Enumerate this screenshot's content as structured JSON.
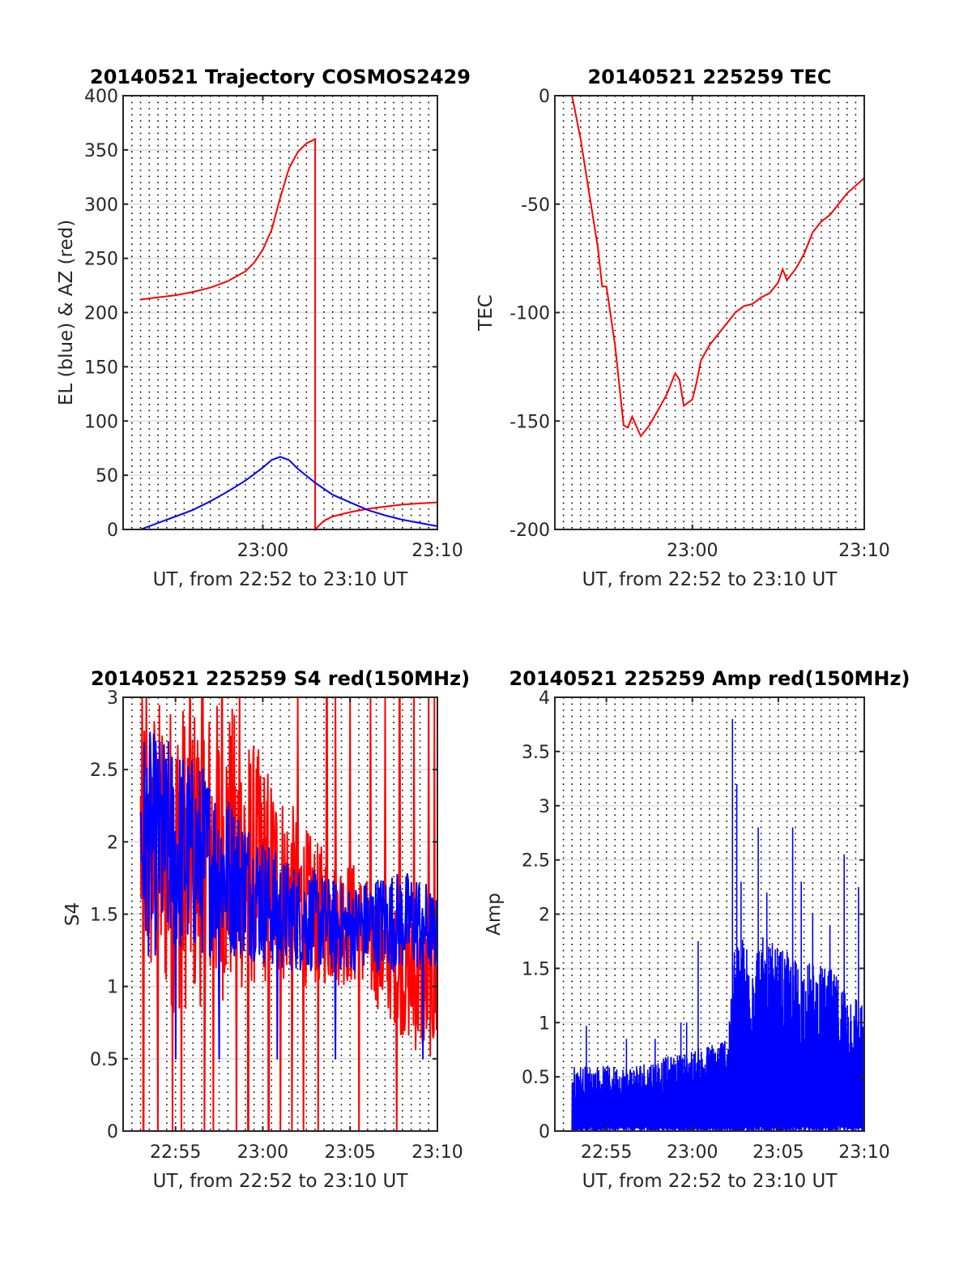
{
  "colors": {
    "red": "#ff0000",
    "blue": "#0000ff",
    "grid": "#e3e3e3",
    "minor_grid": "#000000"
  },
  "chart_data": [
    {
      "id": "p1",
      "type": "line",
      "title": "20140521 Trajectory COSMOS2429",
      "xlabel": "UT, from 22:52 to 23:10 UT",
      "ylabel": "EL (blue) & AZ (red)",
      "xlim": [
        "22:52",
        "23:10"
      ],
      "xticks": [
        "23:00",
        "23:10"
      ],
      "ylim": [
        0,
        400
      ],
      "yticks": [
        "0",
        "50",
        "100",
        "150",
        "200",
        "250",
        "300",
        "350",
        "400"
      ],
      "grid": "minor dotted vertical every 30 s, horizontal major gray",
      "series": [
        {
          "color": "red",
          "role": "AZ",
          "points": [
            [
              "22:53:00",
              212
            ],
            [
              "22:54:00",
              214
            ],
            [
              "22:55:00",
              216
            ],
            [
              "22:56:00",
              219
            ],
            [
              "22:57:00",
              223
            ],
            [
              "22:58:00",
              229
            ],
            [
              "22:59:00",
              238
            ],
            [
              "22:59:30",
              246
            ],
            [
              "23:00:00",
              258
            ],
            [
              "23:00:30",
              276
            ],
            [
              "23:01:00",
              306
            ],
            [
              "23:01:30",
              333
            ],
            [
              "23:02:00",
              348
            ],
            [
              "23:02:30",
              356
            ],
            [
              "23:03:00",
              360
            ],
            [
              "23:03:00",
              0
            ],
            [
              "23:03:30",
              8
            ],
            [
              "23:04:00",
              12
            ],
            [
              "23:05:00",
              16
            ],
            [
              "23:06:00",
              19
            ],
            [
              "23:07:00",
              21
            ],
            [
              "23:08:00",
              23
            ],
            [
              "23:09:00",
              24
            ],
            [
              "23:10:00",
              25
            ]
          ]
        },
        {
          "color": "blue",
          "role": "EL",
          "points": [
            [
              "22:53:00",
              0
            ],
            [
              "22:54:00",
              6
            ],
            [
              "22:55:00",
              12
            ],
            [
              "22:56:00",
              18
            ],
            [
              "22:57:00",
              26
            ],
            [
              "22:58:00",
              35
            ],
            [
              "22:59:00",
              45
            ],
            [
              "23:00:00",
              57
            ],
            [
              "23:00:30",
              64
            ],
            [
              "23:01:00",
              67
            ],
            [
              "23:01:30",
              64
            ],
            [
              "23:02:00",
              56
            ],
            [
              "23:03:00",
              43
            ],
            [
              "23:04:00",
              32
            ],
            [
              "23:05:00",
              25
            ],
            [
              "23:06:00",
              18
            ],
            [
              "23:07:00",
              13
            ],
            [
              "23:08:00",
              9
            ],
            [
              "23:09:00",
              6
            ],
            [
              "23:10:00",
              3
            ]
          ]
        }
      ]
    },
    {
      "id": "p2",
      "type": "line",
      "title": "20140521 225259 TEC",
      "xlabel": "UT, from 22:52 to 23:10 UT",
      "ylabel": "TEC",
      "xlim": [
        "22:52",
        "23:10"
      ],
      "xticks": [
        "23:00",
        "23:10"
      ],
      "ylim": [
        -200,
        0
      ],
      "yticks": [
        "-200",
        "-150",
        "-100",
        "-50",
        "0"
      ],
      "series": [
        {
          "color": "red",
          "role": "TEC",
          "points": [
            [
              "22:53:00",
              0
            ],
            [
              "22:53:30",
              -20
            ],
            [
              "22:54:00",
              -45
            ],
            [
              "22:54:30",
              -70
            ],
            [
              "22:54:45",
              -88
            ],
            [
              "22:55:00",
              -88
            ],
            [
              "22:55:30",
              -115
            ],
            [
              "22:56:00",
              -152
            ],
            [
              "22:56:15",
              -153
            ],
            [
              "22:56:30",
              -148
            ],
            [
              "22:57:00",
              -157
            ],
            [
              "22:57:30",
              -152
            ],
            [
              "22:58:00",
              -145
            ],
            [
              "22:58:30",
              -138
            ],
            [
              "22:59:00",
              -128
            ],
            [
              "22:59:15",
              -131
            ],
            [
              "22:59:30",
              -143
            ],
            [
              "23:00:00",
              -140
            ],
            [
              "23:00:15",
              -132
            ],
            [
              "23:00:30",
              -122
            ],
            [
              "23:01:00",
              -115
            ],
            [
              "23:01:30",
              -110
            ],
            [
              "23:02:00",
              -105
            ],
            [
              "23:02:30",
              -100
            ],
            [
              "23:03:00",
              -97
            ],
            [
              "23:03:30",
              -96
            ],
            [
              "23:04:00",
              -93
            ],
            [
              "23:04:30",
              -91
            ],
            [
              "23:05:00",
              -86
            ],
            [
              "23:05:15",
              -80
            ],
            [
              "23:05:30",
              -85
            ],
            [
              "23:06:00",
              -80
            ],
            [
              "23:06:30",
              -73
            ],
            [
              "23:07:00",
              -63
            ],
            [
              "23:07:30",
              -58
            ],
            [
              "23:08:00",
              -55
            ],
            [
              "23:08:30",
              -50
            ],
            [
              "23:09:00",
              -45
            ],
            [
              "23:10:00",
              -38
            ]
          ]
        }
      ]
    },
    {
      "id": "p3",
      "type": "line",
      "title": "20140521 225259 S4 red(150MHz)",
      "xlabel": "UT, from 22:52 to 23:10 UT",
      "ylabel": "S4",
      "xlim": [
        "22:52",
        "23:10"
      ],
      "xticks": [
        "22:55",
        "23:00",
        "23:05",
        "23:10"
      ],
      "ylim": [
        0,
        3
      ],
      "yticks": [
        "0",
        "0.5",
        "1",
        "1.5",
        "2",
        "2.5",
        "3"
      ],
      "series": [
        {
          "color": "red",
          "role": "S4 150MHz",
          "envelope": [
            [
              "22:53",
              1.0,
              3.0
            ],
            [
              "22:55",
              0.8,
              3.0
            ],
            [
              "22:58",
              0.9,
              3.0
            ],
            [
              "23:00",
              1.0,
              2.6
            ],
            [
              "23:03",
              1.0,
              2.0
            ],
            [
              "23:05",
              1.0,
              1.9
            ],
            [
              "23:07",
              0.8,
              1.6
            ],
            [
              "23:09",
              0.5,
              1.5
            ],
            [
              "23:10",
              0.5,
              1.4
            ]
          ],
          "drops_to_zero_near": [
            "22:53:10",
            "22:53:20",
            "22:54:00",
            "22:54:50",
            "22:55:20",
            "22:56:40",
            "22:57:10",
            "22:58:30",
            "22:59:10",
            "23:00:20",
            "23:01:00",
            "23:01:40",
            "23:02:20",
            "23:03:10",
            "23:03:40",
            "23:05:30",
            "23:07:40",
            "23:09:30",
            "23:09:50"
          ],
          "spikes_to_top_near": [
            "22:53:20",
            "22:55:50",
            "22:56:30",
            "22:57:40",
            "22:58:40",
            "23:02:00",
            "23:03:40",
            "23:04:10",
            "23:05:00",
            "23:06:10",
            "23:07:00",
            "23:07:50",
            "23:08:40",
            "23:09:30",
            "23:09:50"
          ]
        },
        {
          "color": "blue",
          "role": "S4",
          "envelope": [
            [
              "22:53",
              1.2,
              2.8
            ],
            [
              "22:55",
              1.2,
              2.7
            ],
            [
              "22:57",
              1.2,
              2.5
            ],
            [
              "22:59",
              1.2,
              2.2
            ],
            [
              "23:01",
              1.1,
              1.9
            ],
            [
              "23:03",
              1.1,
              1.8
            ],
            [
              "23:05",
              1.1,
              1.7
            ],
            [
              "23:07",
              1.1,
              1.8
            ],
            [
              "23:09",
              1.1,
              1.8
            ],
            [
              "23:10",
              1.1,
              1.6
            ]
          ],
          "drops_near": [
            "22:55:00",
            "22:57:30",
            "23:00:50",
            "23:04:10",
            "23:09:10"
          ]
        }
      ]
    },
    {
      "id": "p4",
      "type": "line",
      "title": "20140521 225259 Amp red(150MHz)",
      "xlabel": "UT, from 22:52 to 23:10 UT",
      "ylabel": "Amp",
      "xlim": [
        "22:52",
        "23:10"
      ],
      "xticks": [
        "22:55",
        "23:00",
        "23:05",
        "23:10"
      ],
      "ylim": [
        0,
        4
      ],
      "yticks": [
        "0",
        "0.5",
        "1",
        "1.5",
        "2",
        "2.5",
        "3",
        "3.5",
        "4"
      ],
      "series": [
        {
          "color": "blue",
          "role": "Amp",
          "envelope": [
            [
              "22:53",
              0,
              0.6
            ],
            [
              "22:56",
              0,
              0.6
            ],
            [
              "22:59",
              0,
              0.7
            ],
            [
              "23:01",
              0,
              0.8
            ],
            [
              "23:02",
              0,
              0.9
            ],
            [
              "23:02:30",
              0,
              1.8
            ],
            [
              "23:04",
              0,
              1.8
            ],
            [
              "23:06",
              0,
              1.6
            ],
            [
              "23:08",
              0,
              1.5
            ],
            [
              "23:10",
              0,
              1.2
            ]
          ],
          "spikes": [
            [
              "22:53:50",
              0.97
            ],
            [
              "22:56:10",
              0.85
            ],
            [
              "22:57:50",
              0.85
            ],
            [
              "22:59:20",
              1.0
            ],
            [
              "22:59:40",
              1.0
            ],
            [
              "23:00:20",
              1.75
            ],
            [
              "23:02:20",
              3.8
            ],
            [
              "23:02:35",
              3.2
            ],
            [
              "23:02:50",
              2.3
            ],
            [
              "23:03:50",
              2.8
            ],
            [
              "23:04:20",
              2.2
            ],
            [
              "23:05:50",
              2.8
            ],
            [
              "23:06:20",
              2.3
            ],
            [
              "23:07:00",
              2.0
            ],
            [
              "23:08:00",
              1.9
            ],
            [
              "23:08:50",
              2.55
            ],
            [
              "23:09:40",
              2.25
            ]
          ]
        }
      ]
    }
  ]
}
